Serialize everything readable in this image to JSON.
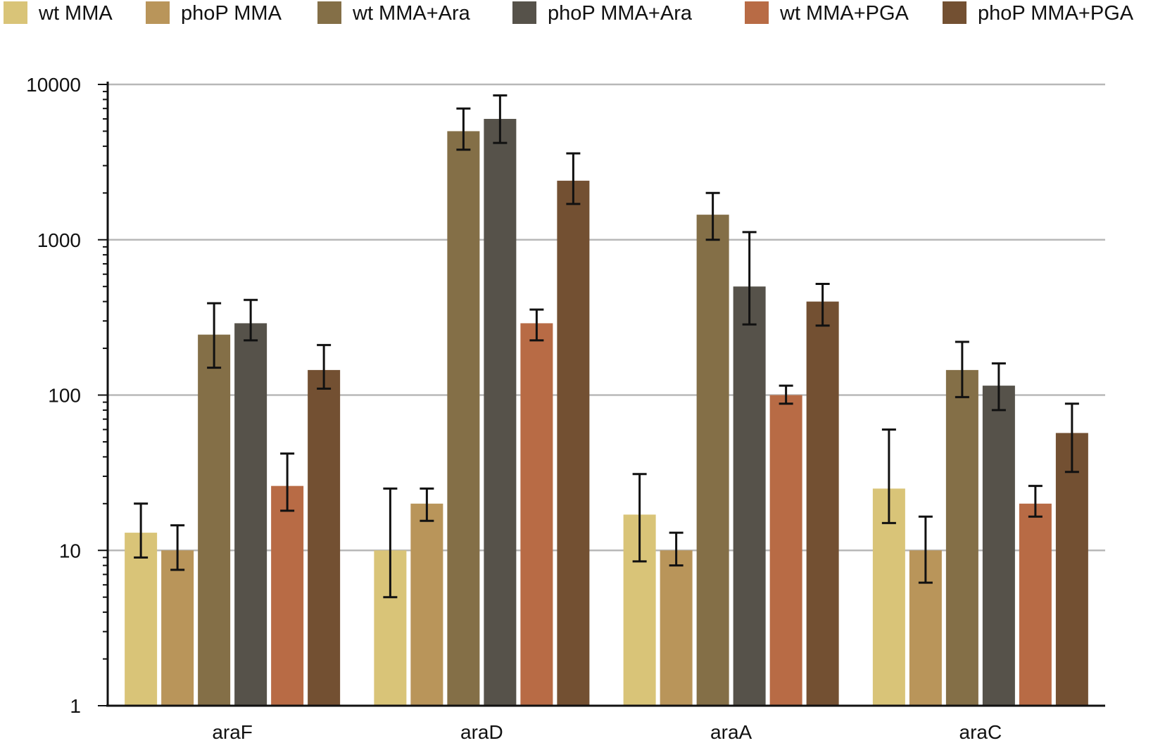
{
  "chart_data": {
    "type": "bar",
    "title": "",
    "xlabel": "",
    "ylabel": "",
    "yscale": "log",
    "ylim": [
      1,
      10000
    ],
    "grid": true,
    "legend_position": "top",
    "categories": [
      "araF",
      "araD",
      "araA",
      "araC"
    ],
    "y_ticks": [
      {
        "value": 1,
        "label": "1"
      },
      {
        "value": 10,
        "label": "10"
      },
      {
        "value": 100,
        "label": "100"
      },
      {
        "value": 1000,
        "label": "1000"
      },
      {
        "value": 10000,
        "label": "10000"
      }
    ],
    "series": [
      {
        "name": "wt MMA",
        "color": "#D9C478",
        "values": [
          13,
          10,
          17,
          25
        ],
        "err_low": [
          9,
          5,
          8.5,
          15
        ],
        "err_high": [
          20,
          25,
          31,
          60
        ]
      },
      {
        "name": "phoP MMA",
        "color": "#B9955A",
        "values": [
          10,
          20,
          10,
          10
        ],
        "err_low": [
          7.5,
          15.5,
          8,
          6.2
        ],
        "err_high": [
          14.5,
          25,
          13,
          16.5
        ]
      },
      {
        "name": "wt MMA+Ara",
        "color": "#846F47",
        "values": [
          245,
          5000,
          1450,
          145
        ],
        "err_low": [
          150,
          3800,
          1000,
          97
        ],
        "err_high": [
          390,
          7000,
          2000,
          220
        ]
      },
      {
        "name": "phoP MMA+Ara",
        "color": "#56524A",
        "values": [
          290,
          6000,
          500,
          115
        ],
        "err_low": [
          225,
          4200,
          285,
          80
        ],
        "err_high": [
          410,
          8500,
          1120,
          160
        ]
      },
      {
        "name": "wt MMA+PGA",
        "color": "#B86B45",
        "values": [
          26,
          290,
          100,
          20
        ],
        "err_low": [
          18,
          225,
          88,
          16.5
        ],
        "err_high": [
          42,
          355,
          115,
          26
        ]
      },
      {
        "name": "phoP MMA+PGA",
        "color": "#735032",
        "values": [
          145,
          2400,
          400,
          57
        ],
        "err_low": [
          110,
          1700,
          280,
          32
        ],
        "err_high": [
          210,
          3600,
          520,
          88
        ]
      }
    ]
  }
}
